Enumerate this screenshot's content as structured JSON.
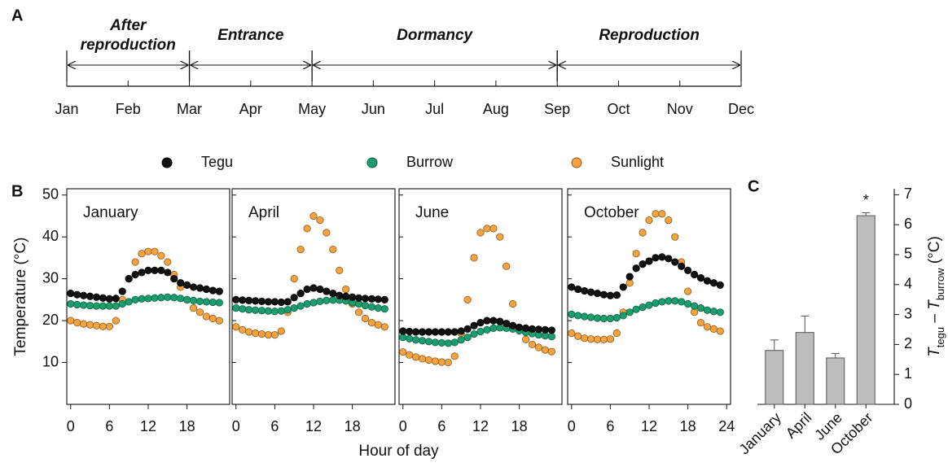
{
  "timeline": {
    "panel_label": "A",
    "months": [
      "Jan",
      "Feb",
      "Mar",
      "Apr",
      "May",
      "Jun",
      "Jul",
      "Aug",
      "Sep",
      "Oct",
      "Nov",
      "Dec"
    ],
    "phases": [
      {
        "label": "After\nreproduction",
        "start": 0,
        "end": 2
      },
      {
        "label": "Entrance",
        "start": 2,
        "end": 4
      },
      {
        "label": "Dormancy",
        "start": 4,
        "end": 8
      },
      {
        "label": "Reproduction",
        "start": 8,
        "end": 11
      }
    ]
  },
  "chart_data": [
    {
      "type": "scatter",
      "panel_label": "B",
      "title": "January",
      "ylabel": "Temperature (°C)",
      "xlabel": "Hour of day",
      "x": [
        0,
        1,
        2,
        3,
        4,
        5,
        6,
        7,
        8,
        9,
        10,
        11,
        12,
        13,
        14,
        15,
        16,
        17,
        18,
        19,
        20,
        21,
        22,
        23
      ],
      "xlim": [
        -0.6,
        24.6
      ],
      "xticks": [
        0,
        6,
        12,
        18
      ],
      "ylim": [
        0,
        51.5
      ],
      "yticks": [
        10,
        20,
        30,
        40,
        50
      ],
      "series": [
        {
          "name": "Tegu",
          "color": "#111111",
          "values": [
            26.5,
            26.2,
            26,
            25.8,
            25.6,
            25.4,
            25.2,
            25.3,
            27,
            30,
            31,
            31.5,
            32,
            32,
            32,
            31.5,
            30,
            29,
            28.5,
            28,
            27.8,
            27.5,
            27.2,
            27
          ]
        },
        {
          "name": "Burrow",
          "color": "#1a9e6e",
          "values": [
            24,
            23.8,
            23.7,
            23.6,
            23.5,
            23.5,
            23.5,
            23.5,
            24,
            24.5,
            25,
            25.2,
            25.3,
            25.4,
            25.5,
            25.6,
            25.5,
            25.3,
            25,
            24.8,
            24.6,
            24.5,
            24.4,
            24.3
          ]
        },
        {
          "name": "Sunlight",
          "color": "#f4a340",
          "values": [
            20,
            19.5,
            19.2,
            19,
            18.8,
            18.6,
            18.6,
            20,
            25,
            30,
            34,
            36,
            36.5,
            36.5,
            35.5,
            34,
            31,
            28,
            25,
            23,
            22,
            21,
            20.5,
            20
          ]
        }
      ]
    },
    {
      "type": "scatter",
      "title": "April",
      "x": [
        0,
        1,
        2,
        3,
        4,
        5,
        6,
        7,
        8,
        9,
        10,
        11,
        12,
        13,
        14,
        15,
        16,
        17,
        18,
        19,
        20,
        21,
        22,
        23
      ],
      "xlim": [
        -0.6,
        24.6
      ],
      "xticks": [
        0,
        6,
        12,
        18
      ],
      "series": [
        {
          "color": "#111111",
          "values": [
            25,
            24.9,
            24.8,
            24.7,
            24.6,
            24.5,
            24.5,
            24.4,
            24.5,
            25.5,
            26.5,
            27.5,
            27.8,
            27.5,
            27,
            26.5,
            26,
            25.8,
            25.6,
            25.4,
            25.3,
            25.2,
            25.1,
            25
          ]
        },
        {
          "color": "#1a9e6e",
          "values": [
            23,
            22.8,
            22.6,
            22.5,
            22.4,
            22.3,
            22.2,
            22.3,
            22.6,
            23,
            23.5,
            24,
            24.3,
            24.6,
            24.8,
            24.9,
            24.9,
            24.7,
            24.3,
            24,
            23.6,
            23.3,
            23,
            22.8
          ]
        },
        {
          "color": "#f4a340",
          "values": [
            18.5,
            17.8,
            17.3,
            17,
            16.8,
            16.6,
            16.6,
            17.5,
            22,
            30,
            37,
            42,
            45,
            44,
            41,
            37,
            32,
            27.5,
            24,
            22,
            20.5,
            19.5,
            19,
            18.5
          ]
        }
      ]
    },
    {
      "type": "scatter",
      "title": "June",
      "x": [
        0,
        1,
        2,
        3,
        4,
        5,
        6,
        7,
        8,
        9,
        10,
        11,
        12,
        13,
        14,
        15,
        16,
        17,
        18,
        19,
        20,
        21,
        22,
        23
      ],
      "xlim": [
        -0.6,
        24.6
      ],
      "xticks": [
        0,
        6,
        12,
        18
      ],
      "series": [
        {
          "color": "#111111",
          "values": [
            17.5,
            17.4,
            17.3,
            17.3,
            17.3,
            17.3,
            17.3,
            17.3,
            17.3,
            17.5,
            18,
            18.8,
            19.5,
            20,
            20,
            19.8,
            19.3,
            18.8,
            18.4,
            18.2,
            18,
            17.9,
            17.8,
            17.7
          ]
        },
        {
          "color": "#1a9e6e",
          "values": [
            16,
            15.7,
            15.4,
            15.2,
            15,
            14.8,
            14.7,
            14.6,
            14.8,
            15.4,
            16,
            16.8,
            17.4,
            17.8,
            18.2,
            18.3,
            18.2,
            18,
            17.6,
            17.2,
            16.9,
            16.6,
            16.4,
            16.2
          ]
        },
        {
          "color": "#f4a340",
          "values": [
            12.5,
            11.8,
            11.3,
            10.9,
            10.6,
            10.3,
            10.1,
            10,
            11.5,
            17,
            25,
            35,
            41,
            42,
            42,
            40,
            33,
            24,
            18,
            15.5,
            14.3,
            13.6,
            13,
            12.6
          ]
        }
      ]
    },
    {
      "type": "scatter",
      "title": "October",
      "x": [
        0,
        1,
        2,
        3,
        4,
        5,
        6,
        7,
        8,
        9,
        10,
        11,
        12,
        13,
        14,
        15,
        16,
        17,
        18,
        19,
        20,
        21,
        22,
        23
      ],
      "xlim": [
        -0.6,
        24.6
      ],
      "xticks": [
        0,
        6,
        12,
        18,
        24
      ],
      "series": [
        {
          "color": "#111111",
          "values": [
            28,
            27.5,
            27.1,
            26.8,
            26.5,
            26.2,
            26,
            26.1,
            28,
            30.5,
            32.5,
            33.5,
            34.2,
            35,
            35.2,
            34.8,
            34,
            33,
            32,
            31,
            30.2,
            29.5,
            29,
            28.5
          ]
        },
        {
          "color": "#1a9e6e",
          "values": [
            21.5,
            21.2,
            21,
            20.8,
            20.6,
            20.5,
            20.5,
            20.7,
            21.2,
            22,
            22.7,
            23.2,
            23.7,
            24.2,
            24.5,
            24.7,
            24.7,
            24.5,
            24,
            23.5,
            23,
            22.5,
            22.2,
            22
          ]
        },
        {
          "color": "#f4a340",
          "values": [
            17,
            16.3,
            15.8,
            15.6,
            15.5,
            15.5,
            15.6,
            17,
            22,
            29,
            36,
            41,
            44,
            45.5,
            45.5,
            44,
            40,
            34,
            27,
            22,
            19.5,
            18.5,
            18,
            17.5
          ]
        }
      ]
    },
    {
      "type": "bar",
      "panel_label": "C",
      "ylabel": [
        {
          "text": "T",
          "style": "italic"
        },
        {
          "text": "tegu",
          "style": "sub"
        },
        {
          "text": " – ",
          "style": "normal"
        },
        {
          "text": "T",
          "style": "italic"
        },
        {
          "text": "burrow",
          "style": "sub"
        },
        {
          "text": " (°C)",
          "style": "normal"
        }
      ],
      "categories": [
        "January",
        "April",
        "June",
        "October"
      ],
      "values": [
        1.8,
        2.4,
        1.55,
        6.3
      ],
      "errors": [
        0.35,
        0.55,
        0.15,
        0.1
      ],
      "color": "#bdbdbd",
      "annotation": {
        "text": "*",
        "index": 3
      },
      "ylim": [
        0,
        7.2
      ],
      "yticks": [
        0,
        1,
        2,
        3,
        4,
        5,
        6,
        7
      ]
    }
  ]
}
